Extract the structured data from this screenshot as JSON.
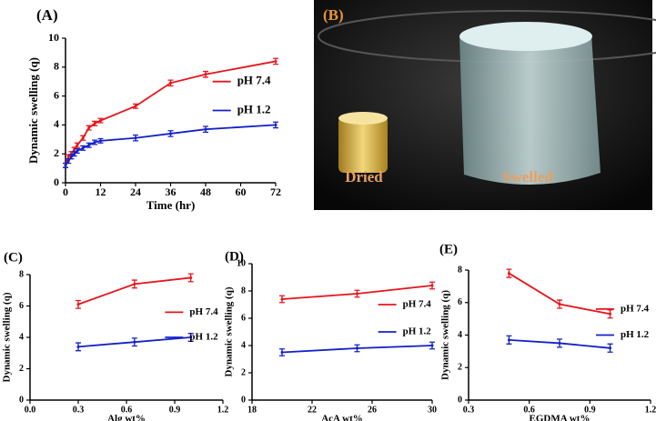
{
  "chart_data": [
    {
      "type": "line",
      "title": "(A)",
      "xlabel": "Time (hr)",
      "ylabel": "Dynamic swelling (q)",
      "x": [
        0,
        1,
        2,
        3,
        4,
        6,
        8,
        10,
        12,
        24,
        36,
        48,
        72
      ],
      "series": [
        {
          "name": "pH 7.4",
          "color": "#e8141b",
          "values": [
            1.2,
            1.8,
            2.0,
            2.3,
            2.6,
            3.1,
            3.8,
            4.1,
            4.3,
            5.3,
            6.9,
            7.5,
            8.4
          ],
          "errors": [
            0.15,
            0.15,
            0.15,
            0.15,
            0.15,
            0.15,
            0.15,
            0.15,
            0.15,
            0.15,
            0.2,
            0.2,
            0.2
          ]
        },
        {
          "name": "pH 1.2",
          "color": "#1420c8",
          "values": [
            1.2,
            1.5,
            1.8,
            2.0,
            2.2,
            2.4,
            2.6,
            2.8,
            2.9,
            3.1,
            3.4,
            3.7,
            4.0
          ],
          "errors": [
            0.15,
            0.15,
            0.15,
            0.15,
            0.15,
            0.15,
            0.15,
            0.15,
            0.15,
            0.2,
            0.2,
            0.2,
            0.2
          ]
        }
      ],
      "xlim": [
        0,
        72
      ],
      "xticks": [
        0,
        12,
        24,
        36,
        48,
        60,
        72
      ],
      "ylim": [
        0,
        10
      ],
      "yticks": [
        0,
        2,
        4,
        6,
        8,
        10
      ]
    },
    {
      "type": "line",
      "title": "(C)",
      "xlabel": "Alg wt%",
      "ylabel": "Dynamic swelling (q)",
      "x": [
        0.3,
        0.65,
        1.0
      ],
      "series": [
        {
          "name": "pH 7.4",
          "color": "#e8141b",
          "values": [
            6.1,
            7.4,
            7.8
          ],
          "errors": [
            0.25,
            0.25,
            0.25
          ]
        },
        {
          "name": "pH 1.2",
          "color": "#1420c8",
          "values": [
            3.4,
            3.7,
            4.0
          ],
          "errors": [
            0.25,
            0.25,
            0.25
          ]
        }
      ],
      "xlim": [
        0,
        1.2
      ],
      "xticks": [
        {
          "value": 0,
          "label": "0.0"
        },
        0.3,
        0.6,
        0.9,
        1.2
      ],
      "ylim": [
        0,
        8
      ],
      "yticks": [
        0,
        2,
        4,
        6,
        8
      ]
    },
    {
      "type": "line",
      "title": "(D)",
      "xlabel": "AcA wt%",
      "ylabel": "Dynamic swelling (q)",
      "x": [
        20,
        25,
        30
      ],
      "series": [
        {
          "name": "pH 7.4",
          "color": "#e8141b",
          "values": [
            7.4,
            7.8,
            8.4
          ],
          "errors": [
            0.25,
            0.25,
            0.25
          ]
        },
        {
          "name": "pH 1.2",
          "color": "#1420c8",
          "values": [
            3.5,
            3.8,
            4.0
          ],
          "errors": [
            0.25,
            0.25,
            0.25
          ]
        }
      ],
      "xlim": [
        18,
        30
      ],
      "xticks": [
        18,
        22,
        26,
        30
      ],
      "ylim": [
        0,
        10
      ],
      "yticks": [
        0,
        2,
        4,
        6,
        8,
        10
      ]
    },
    {
      "type": "line",
      "title": "(E)",
      "xlabel": "EGDMA wt%",
      "ylabel": "Dynamic swelling (q)",
      "x": [
        0.5,
        0.75,
        1.0
      ],
      "series": [
        {
          "name": "pH 7.4",
          "color": "#e8141b",
          "values": [
            7.8,
            5.9,
            5.3
          ],
          "errors": [
            0.25,
            0.25,
            0.25
          ]
        },
        {
          "name": "pH 1.2",
          "color": "#1420c8",
          "values": [
            3.7,
            3.5,
            3.2
          ],
          "errors": [
            0.25,
            0.25,
            0.25
          ]
        }
      ],
      "xlim": [
        0.3,
        1.2
      ],
      "xticks": [
        0.3,
        0.6,
        0.9,
        1.2
      ],
      "ylim": [
        0,
        8
      ],
      "yticks": [
        0,
        2,
        4,
        6,
        8
      ]
    }
  ],
  "photo": {
    "label": "(B)",
    "captions": [
      "Dried",
      "Swelled"
    ]
  }
}
